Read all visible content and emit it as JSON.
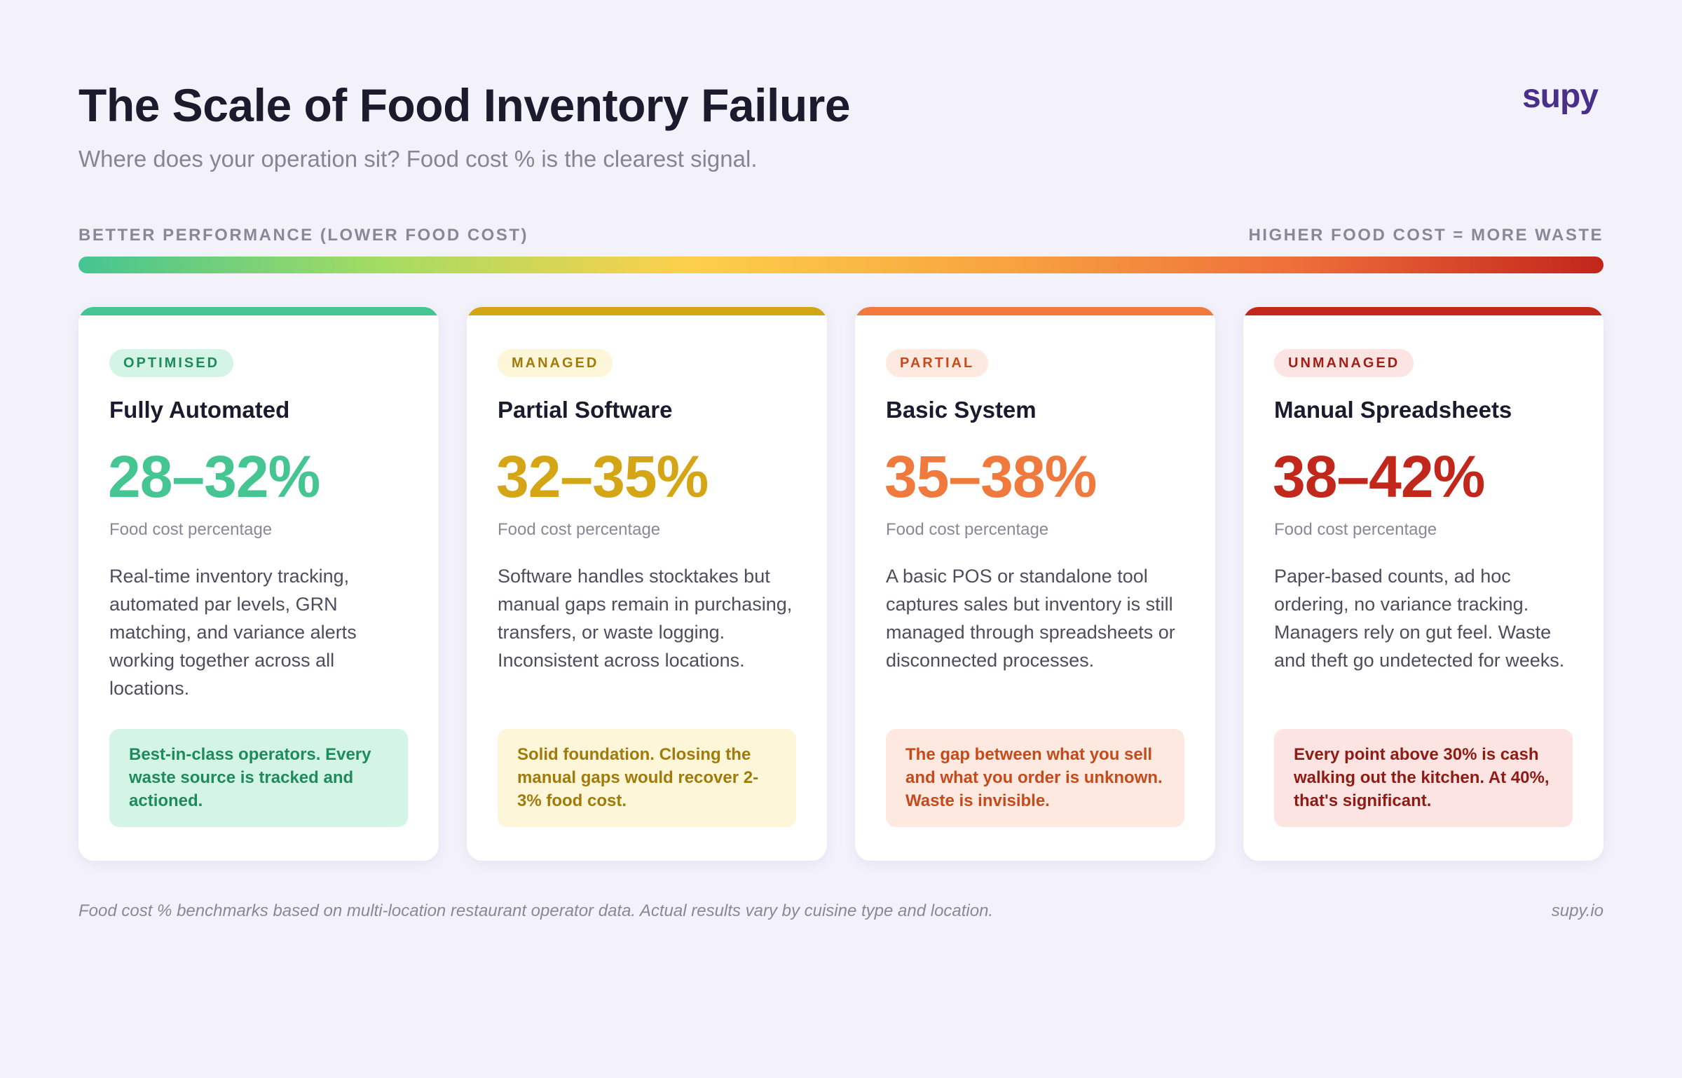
{
  "header": {
    "title": "The Scale of Food Inventory Failure",
    "subtitle": "Where does your operation sit? Food cost % is the clearest signal.",
    "logo": "supy"
  },
  "scale": {
    "left_label": "BETTER PERFORMANCE (LOWER FOOD COST)",
    "right_label": "HIGHER FOOD COST = MORE WASTE",
    "gradient_colors": [
      "#44c592",
      "#a5dc62",
      "#fdd04b",
      "#f8a540",
      "#ee6e3a",
      "#c1251a"
    ]
  },
  "cards": [
    {
      "badge": "OPTIMISED",
      "title": "Fully Automated",
      "range": "28–32%",
      "range_label": "Food cost percentage",
      "description": "Real-time inventory tracking, automated par levels, GRN matching, and variance alerts working together across all locations.",
      "note": "Best-in-class operators. Every waste source is tracked and actioned.",
      "colors": {
        "accent": "#44c592",
        "badge_bg": "#d4f4e6",
        "badge_text": "#1f8a5c",
        "note_bg": "#d4f4e6",
        "note_text": "#1f8a5c"
      }
    },
    {
      "badge": "MANAGED",
      "title": "Partial Software",
      "range": "32–35%",
      "range_label": "Food cost percentage",
      "description": "Software handles stocktakes but manual gaps remain in purchasing, transfers, or waste logging. Inconsistent across locations.",
      "note": "Solid foundation. Closing the manual gaps would recover 2-3% food cost.",
      "colors": {
        "accent": "#d4a514",
        "badge_bg": "#fdf6d8",
        "badge_text": "#a07a0a",
        "note_bg": "#fdf6d8",
        "note_text": "#a07a0a"
      }
    },
    {
      "badge": "PARTIAL",
      "title": "Basic System",
      "range": "35–38%",
      "range_label": "Food cost percentage",
      "description": "A basic POS or standalone tool captures sales but inventory is still managed through spreadsheets or disconnected processes.",
      "note": "The gap between what you sell and what you order is unknown. Waste is invisible.",
      "colors": {
        "accent": "#f07a3e",
        "badge_bg": "#fde9df",
        "badge_text": "#c54a1c",
        "note_bg": "#fde9df",
        "note_text": "#c54a1c"
      }
    },
    {
      "badge": "UNMANAGED",
      "title": "Manual Spreadsheets",
      "range": "38–42%",
      "range_label": "Food cost percentage",
      "description": "Paper-based counts, ad hoc ordering, no variance tracking. Managers rely on gut feel. Waste and theft go undetected for weeks.",
      "note": "Every point above 30% is cash walking out the kitchen. At 40%, that's significant.",
      "colors": {
        "accent": "#c1271a",
        "badge_bg": "#fce4e2",
        "badge_text": "#9e1f16",
        "note_bg": "#fce4e2",
        "note_text": "#8e1c14"
      }
    }
  ],
  "footer": {
    "disclaimer": "Food cost % benchmarks based on multi-location restaurant operator data. Actual results vary by cuisine type and location.",
    "site": "supy.io"
  }
}
